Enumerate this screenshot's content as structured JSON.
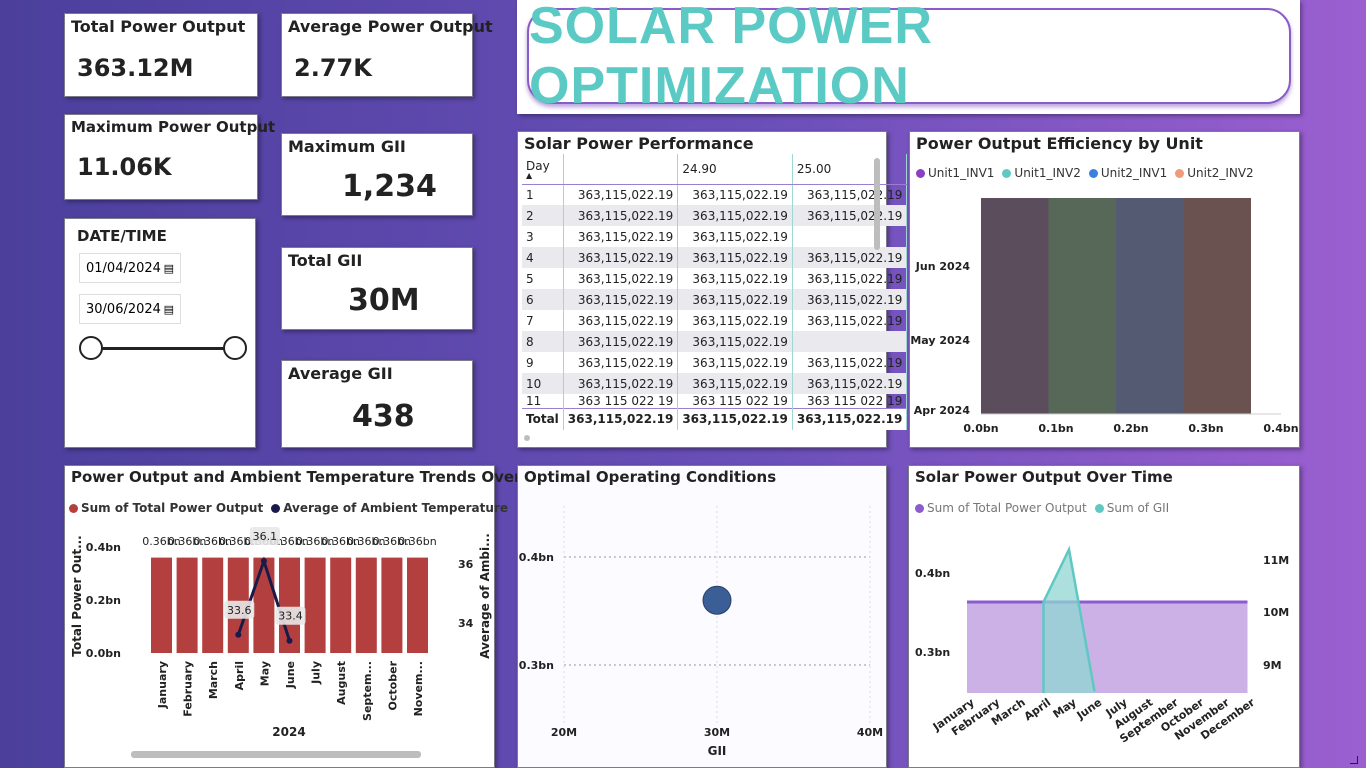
{
  "kpis": {
    "total_power": {
      "title": "Total Power Output",
      "value": "363.12M"
    },
    "avg_power": {
      "title": "Average Power Output",
      "value": "2.77K"
    },
    "max_power": {
      "title": "Maximum Power Output",
      "value": "11.06K"
    },
    "max_gii": {
      "title": "Maximum GII",
      "value": "1,234"
    },
    "total_gii": {
      "title": "Total GII",
      "value": "30M"
    },
    "avg_gii": {
      "title": "Average GII",
      "value": "438"
    }
  },
  "date_filter": {
    "title": "DATE/TIME",
    "start": "01/04/2024",
    "end": "30/06/2024",
    "calendar_icon": "calendar-icon"
  },
  "banner": {
    "title": "SOLAR POWER OPTIMIZATION"
  },
  "performance_table": {
    "title": "Solar Power Performance",
    "columns": [
      "Day",
      "",
      "24.90",
      "25.00"
    ],
    "rows": [
      [
        "1",
        "363,115,022.19",
        "363,115,022.19",
        "363,115,022.19"
      ],
      [
        "2",
        "363,115,022.19",
        "363,115,022.19",
        "363,115,022.19"
      ],
      [
        "3",
        "363,115,022.19",
        "363,115,022.19",
        ""
      ],
      [
        "4",
        "363,115,022.19",
        "363,115,022.19",
        "363,115,022.19"
      ],
      [
        "5",
        "363,115,022.19",
        "363,115,022.19",
        "363,115,022.19"
      ],
      [
        "6",
        "363,115,022.19",
        "363,115,022.19",
        "363,115,022.19"
      ],
      [
        "7",
        "363,115,022.19",
        "363,115,022.19",
        "363,115,022.19"
      ],
      [
        "8",
        "363,115,022.19",
        "363,115,022.19",
        ""
      ],
      [
        "9",
        "363,115,022.19",
        "363,115,022.19",
        "363,115,022.19"
      ],
      [
        "10",
        "363,115,022.19",
        "363,115,022.19",
        "363,115,022.19"
      ],
      [
        "11",
        "363 115 022 19",
        "363 115 022 19",
        "363 115 022 19"
      ]
    ],
    "total": [
      "Total",
      "363,115,022.19",
      "363,115,022.19",
      "363,115,022.19"
    ]
  },
  "chart_data": [
    {
      "type": "bar",
      "title": "Power Output Efficiency by Unit",
      "orientation": "horizontal",
      "series": [
        {
          "name": "Unit1_INV1",
          "color": "#8b3fc4",
          "value": 0.09
        },
        {
          "name": "Unit1_INV2",
          "color": "#5fc8c2",
          "value": 0.09
        },
        {
          "name": "Unit2_INV1",
          "color": "#3b7fe0",
          "value": 0.09
        },
        {
          "name": "Unit2_INV2",
          "color": "#f09a7a",
          "value": 0.09
        }
      ],
      "categories": [
        "Apr 2024",
        "May 2024",
        "Jun 2024"
      ],
      "x_ticks": [
        "0.0bn",
        "0.1bn",
        "0.2bn",
        "0.3bn",
        "0.4bn"
      ],
      "xlim": [
        0,
        0.4
      ]
    },
    {
      "type": "bar",
      "title": "Power Output and Ambient Temperature Trends Over Time",
      "legend": [
        "Sum of Total Power Output",
        "Average of Ambient Temperature"
      ],
      "categories": [
        "January",
        "February",
        "March",
        "April",
        "May",
        "June",
        "July",
        "August",
        "Septem...",
        "October",
        "Novem..."
      ],
      "values": [
        0.36,
        0.36,
        0.36,
        0.36,
        0.36,
        0.36,
        0.36,
        0.36,
        0.36,
        0.36,
        0.36
      ],
      "bar_labels": [
        "0.36bn",
        "0.36bn",
        "0.36bn",
        "0.36bn",
        "0.36bn",
        "0.36bn",
        "0.36bn",
        "0.36bn",
        "0.36bn",
        "0.36bn",
        "0.36bn"
      ],
      "line": {
        "categories": [
          "April",
          "May",
          "June"
        ],
        "values": [
          33.6,
          36.1,
          33.4
        ]
      },
      "xlabel": "2024",
      "ylabel": "Total Power Out...",
      "y2label": "Average of Ambi...",
      "y_ticks": [
        "0.0bn",
        "0.2bn",
        "0.4bn"
      ],
      "y2_ticks": [
        "34",
        "36"
      ],
      "ylim": [
        0,
        0.4
      ],
      "bar_color": "#b3403f",
      "line_color": "#1a1a4a"
    },
    {
      "type": "scatter",
      "title": "Optimal Operating Conditions",
      "points": [
        {
          "x": 30,
          "y": 0.36
        }
      ],
      "xlabel": "GII",
      "x_ticks": [
        "20M",
        "30M",
        "40M"
      ],
      "y_ticks": [
        "0.3bn",
        "0.4bn"
      ],
      "xlim": [
        20,
        40
      ],
      "ylim": [
        0.28,
        0.42
      ],
      "color": "#3b5e96"
    },
    {
      "type": "area",
      "title": "Solar Power Output Over Time",
      "legend": [
        "Sum of Total Power Output",
        "Sum of GII"
      ],
      "categories": [
        "January",
        "February",
        "March",
        "April",
        "May",
        "June",
        "July",
        "August",
        "September",
        "October",
        "November",
        "December"
      ],
      "series": [
        {
          "name": "Sum of Total Power Output",
          "color": "#8b5bd0",
          "values": [
            0.36,
            0.36,
            0.36,
            0.36,
            0.36,
            0.36,
            0.36,
            0.36,
            0.36,
            0.36,
            0.36,
            0.36
          ]
        },
        {
          "name": "Sum of GII",
          "color": "#5fc8c2",
          "values": [
            null,
            null,
            null,
            10.2,
            11.2,
            8.5,
            null,
            null,
            null,
            null,
            null,
            null
          ]
        }
      ],
      "y_ticks": [
        "0.3bn",
        "0.4bn"
      ],
      "y2_ticks": [
        "9M",
        "10M",
        "11M"
      ]
    }
  ]
}
